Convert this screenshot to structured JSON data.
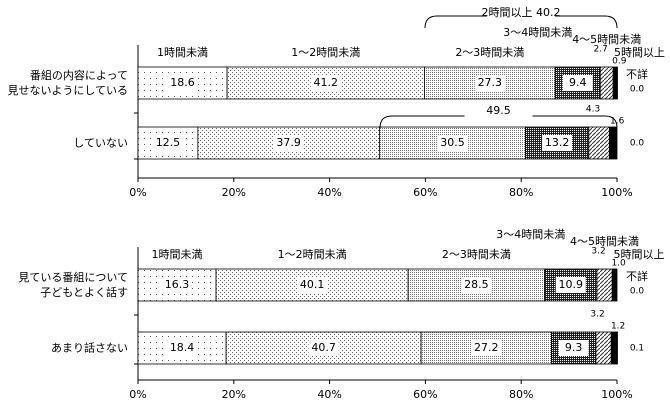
{
  "chart_data": [
    {
      "type": "stacked_bar",
      "categories": [
        "番組の内容によって\n見せないようにしている",
        "していない"
      ],
      "series": [
        {
          "name": "1時間未満",
          "color": "#555555",
          "values": [
            18.6,
            12.5
          ]
        },
        {
          "name": "1～2時間未満",
          "color": "#666666",
          "values": [
            41.2,
            37.9
          ]
        },
        {
          "name": "2～3時間未満",
          "color": "#777777",
          "values": [
            27.3,
            30.5
          ]
        },
        {
          "name": "3～4時間未満",
          "color": "#222222",
          "values": [
            9.4,
            13.2
          ]
        },
        {
          "name": "4～5時間未満",
          "color": "#333333",
          "values": [
            2.7,
            4.3
          ]
        },
        {
          "name": "5時間以上",
          "color": "#000000",
          "values": [
            0.9,
            1.6
          ]
        },
        {
          "name": "不詳",
          "color": "#ffffff",
          "values": [
            0,
            0
          ],
          "value_labels": [
            "0.0",
            "0.0"
          ]
        }
      ],
      "annotations": [
        "2時間以上 40.2",
        "49.5"
      ],
      "xlim": [
        0,
        100
      ],
      "xticks": [
        {
          "value": 0,
          "label": "0%"
        },
        {
          "value": 20,
          "label": "20%"
        },
        {
          "value": 40,
          "label": "40%"
        },
        {
          "value": 60,
          "label": "60%"
        },
        {
          "value": 80,
          "label": "80%"
        },
        {
          "value": 100,
          "label": "100%"
        }
      ]
    },
    {
      "type": "stacked_bar",
      "categories": [
        "見ている番組について\n子どもとよく話す",
        "あまり話さない"
      ],
      "series": [
        {
          "name": "1時間未満",
          "color": "#555555",
          "values": [
            16.3,
            18.4
          ]
        },
        {
          "name": "1～2時間未満",
          "color": "#666666",
          "values": [
            40.1,
            40.7
          ]
        },
        {
          "name": "2～3時間未満",
          "color": "#777777",
          "values": [
            28.5,
            27.2
          ]
        },
        {
          "name": "3～4時間未満",
          "color": "#222222",
          "values": [
            10.9,
            9.3
          ]
        },
        {
          "name": "4～5時間未満",
          "color": "#333333",
          "values": [
            3.2,
            3.2
          ]
        },
        {
          "name": "5時間以上",
          "color": "#000000",
          "values": [
            1.0,
            1.2
          ],
          "value_labels": [
            "1.0",
            "1.2"
          ]
        },
        {
          "name": "不詳",
          "color": "#ffffff",
          "values": [
            0,
            0.1
          ],
          "value_labels": [
            "0.0",
            "0.1"
          ]
        }
      ],
      "xlim": [
        0,
        100
      ],
      "xticks": [
        {
          "value": 0,
          "label": "0%"
        },
        {
          "value": 20,
          "label": "20%"
        },
        {
          "value": 40,
          "label": "40%"
        },
        {
          "value": 60,
          "label": "60%"
        },
        {
          "value": 80,
          "label": "80%"
        },
        {
          "value": 100,
          "label": "100%"
        }
      ]
    }
  ]
}
